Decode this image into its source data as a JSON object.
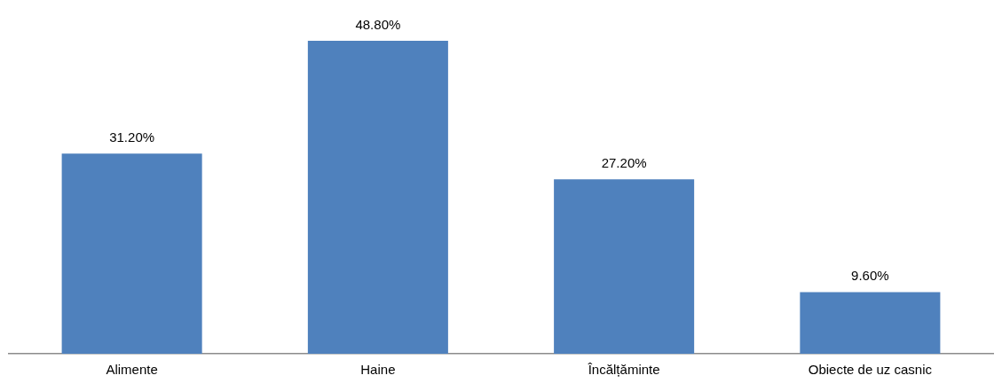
{
  "chart_data": {
    "type": "bar",
    "relative": false,
    "categories": [
      "Alimente",
      "Haine",
      "Încălțăminte",
      "Obiecte de uz casnic"
    ],
    "values": [
      31.2,
      48.8,
      27.2,
      9.6
    ],
    "value_labels": [
      "31.20%",
      "48.80%",
      "27.20%",
      "9.60%"
    ],
    "color": "#4f81bd",
    "grid": false,
    "legend": false,
    "tick_labels": "x"
  }
}
